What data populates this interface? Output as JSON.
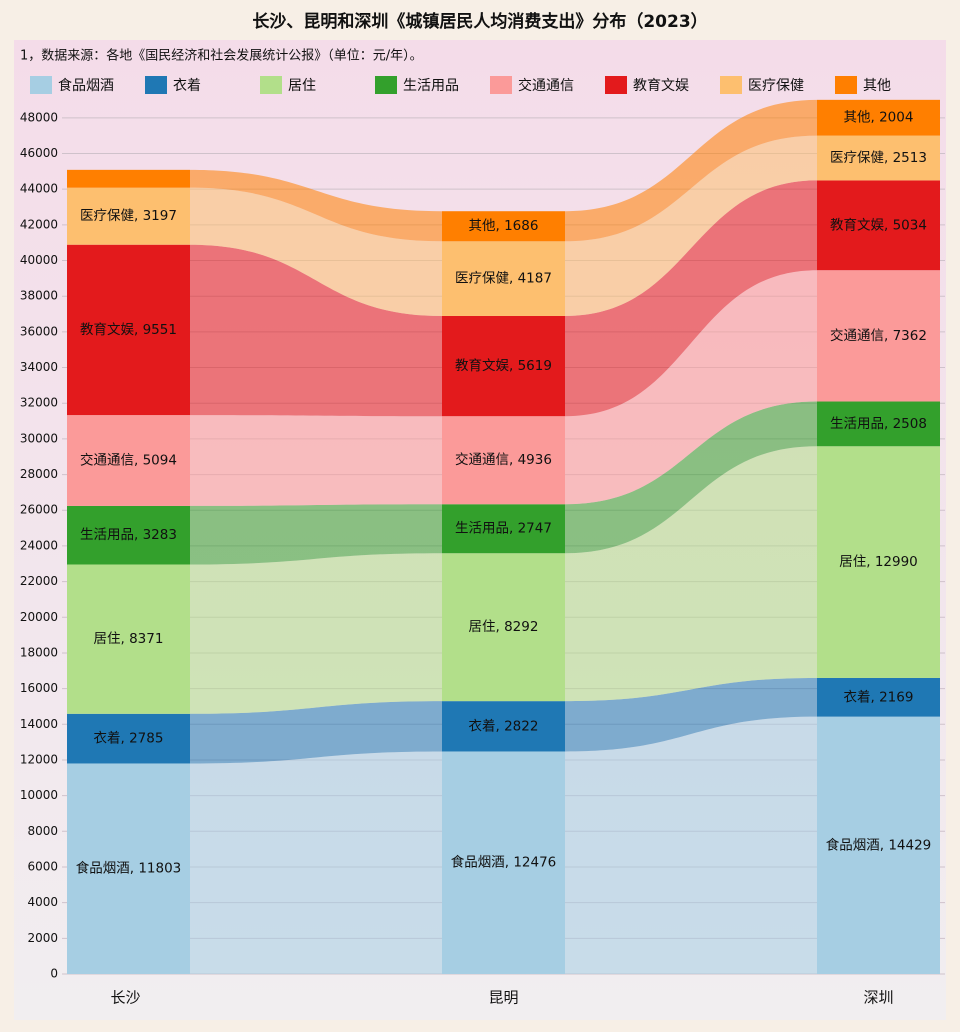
{
  "chart_data": {
    "type": "stacked-bar-flow",
    "title": "长沙、昆明和深圳《城镇居民人均消费支出》分布（2023）",
    "subtitle": "1，数据来源：各地《国民经济和社会发展统计公报》（单位：元/年）。",
    "categories": [
      "长沙",
      "昆明",
      "深圳"
    ],
    "ylim": [
      0,
      49000
    ],
    "yticks": [
      0,
      2000,
      4000,
      6000,
      8000,
      10000,
      12000,
      14000,
      16000,
      18000,
      20000,
      22000,
      24000,
      26000,
      28000,
      30000,
      32000,
      34000,
      36000,
      38000,
      40000,
      42000,
      44000,
      46000,
      48000
    ],
    "grid": true,
    "series": [
      {
        "name": "食品烟酒",
        "color": "#a6cee3",
        "values": [
          11803,
          12476,
          14429
        ],
        "value_labels": [
          "食品烟酒, 11803",
          "食品烟酒, 12476",
          "食品烟酒, 14429"
        ]
      },
      {
        "name": "衣着",
        "color": "#1f78b4",
        "values": [
          2785,
          2822,
          2169
        ],
        "value_labels": [
          "衣着, 2785",
          "衣着, 2822",
          "衣着, 2169"
        ]
      },
      {
        "name": "居住",
        "color": "#b2df8a",
        "values": [
          8371,
          8292,
          12990
        ],
        "value_labels": [
          "居住, 8371",
          "居住, 8292",
          "居住, 12990"
        ]
      },
      {
        "name": "生活用品",
        "color": "#33a02c",
        "values": [
          3283,
          2747,
          2508
        ],
        "value_labels": [
          "生活用品, 3283",
          "生活用品, 2747",
          "生活用品, 2508"
        ]
      },
      {
        "name": "交通通信",
        "color": "#fb9a99",
        "values": [
          5094,
          4936,
          7362
        ],
        "value_labels": [
          "交通通信, 5094",
          "交通通信, 4936",
          "交通通信, 7362"
        ]
      },
      {
        "name": "教育文娱",
        "color": "#e31a1c",
        "values": [
          9551,
          5619,
          5034
        ],
        "value_labels": [
          "教育文娱, 9551",
          "教育文娱, 5619",
          "教育文娱, 5034"
        ]
      },
      {
        "name": "医疗保健",
        "color": "#fdbf6f",
        "values": [
          3197,
          4187,
          2513
        ],
        "value_labels": [
          "医疗保健, 3197",
          "医疗保健, 4187",
          "医疗保健, 2513"
        ]
      },
      {
        "name": "其他",
        "color": "#ff7f00",
        "values": [
          1000,
          1686,
          2004
        ],
        "value_labels": [
          null,
          "其他, 1686",
          "其他, 2004"
        ]
      }
    ]
  }
}
